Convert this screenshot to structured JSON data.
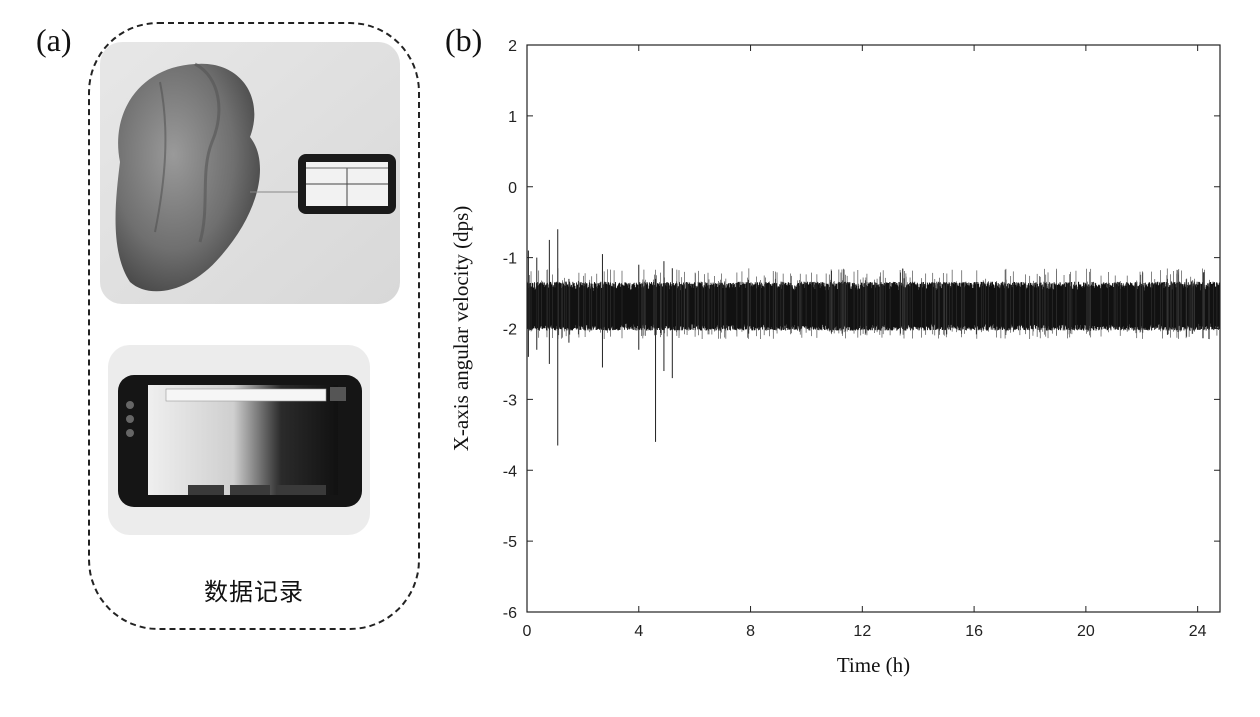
{
  "panel_a": {
    "label": "(a)",
    "caption": "数据记录"
  },
  "panel_b": {
    "label": "(b)"
  },
  "chart_data": {
    "type": "line",
    "xlabel": "Time (h)",
    "ylabel": "X-axis angular velocity (dps)",
    "xlim": [
      0,
      24.8
    ],
    "ylim": [
      -6,
      2
    ],
    "xticks": [
      0,
      4,
      8,
      12,
      16,
      20,
      24
    ],
    "yticks": [
      -6,
      -5,
      -4,
      -3,
      -2,
      -1,
      0,
      1,
      2
    ],
    "grid": false,
    "series": [
      {
        "description_values": "dense noisy signal centered near -1.7 dps with band about -2.0 to -1.4",
        "center": -1.7,
        "band_low": -2.0,
        "band_high": -1.4,
        "spikes": [
          {
            "x": 0.05,
            "y_min": -2.4,
            "y_max": -0.9
          },
          {
            "x": 0.35,
            "y_min": -2.3,
            "y_max": -1.0
          },
          {
            "x": 0.8,
            "y_min": -2.5,
            "y_max": -0.75
          },
          {
            "x": 1.1,
            "y_min": -3.65,
            "y_max": -0.6
          },
          {
            "x": 1.5,
            "y_min": -2.2,
            "y_max": -1.3
          },
          {
            "x": 2.7,
            "y_min": -2.55,
            "y_max": -0.95
          },
          {
            "x": 4.0,
            "y_min": -2.3,
            "y_max": -1.1
          },
          {
            "x": 4.6,
            "y_min": -3.6,
            "y_max": -1.3
          },
          {
            "x": 4.9,
            "y_min": -2.6,
            "y_max": -1.05
          },
          {
            "x": 5.2,
            "y_min": -2.7,
            "y_max": -1.15
          }
        ]
      }
    ]
  }
}
